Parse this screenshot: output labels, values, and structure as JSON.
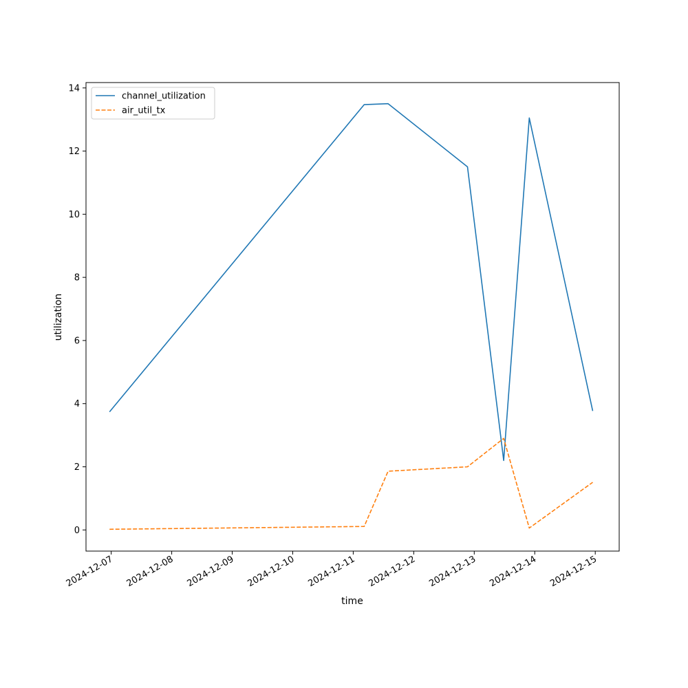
{
  "chart_data": {
    "type": "line",
    "xlabel": "time",
    "ylabel": "utilization",
    "x_tick_labels": [
      "2024-12-07",
      "2024-12-08",
      "2024-12-09",
      "2024-12-10",
      "2024-12-11",
      "2024-12-12",
      "2024-12-13",
      "2024-12-14",
      "2024-12-15"
    ],
    "y_tick_labels": [
      "0",
      "2",
      "4",
      "6",
      "8",
      "10",
      "12",
      "14"
    ],
    "xlim": [
      "2024-12-06 14:00",
      "2024-12-15 09:30"
    ],
    "ylim": [
      -0.67,
      14.17
    ],
    "grid": false,
    "legend_position": "top-left",
    "x": [
      "2024-12-06 23:20",
      "2024-12-11 04:20",
      "2024-12-11 13:50",
      "2024-12-12 21:20",
      "2024-12-13 11:40",
      "2024-12-13 21:50",
      "2024-12-14 23:00"
    ],
    "series": [
      {
        "name": "channel_utilization",
        "color": "#1f77b4",
        "style": "solid",
        "values": [
          3.74,
          13.47,
          13.5,
          11.5,
          2.2,
          13.05,
          3.77
        ]
      },
      {
        "name": "air_util_tx",
        "color": "#ff7f0e",
        "style": "dashed",
        "values": [
          0.02,
          0.11,
          1.86,
          2.0,
          2.9,
          0.06,
          1.51
        ]
      }
    ]
  }
}
